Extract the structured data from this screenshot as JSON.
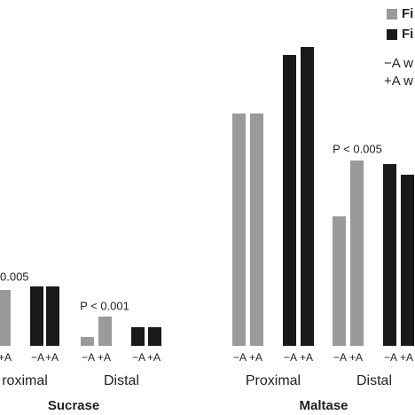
{
  "chart_data": {
    "type": "bar",
    "legend": [
      {
        "name": "Fi",
        "color": "#9a9a9a"
      },
      {
        "name": "Fi",
        "color": "#1a1a1a"
      }
    ],
    "legend_notes": [
      "−A w",
      "+A w"
    ],
    "groups": [
      {
        "label": "Sucrase",
        "regions": [
          {
            "label": "roximal",
            "annotation": "0.005",
            "pairs": [
              {
                "series": 0,
                "ticks": [
                  "+A"
                ],
                "values": [
                  63
                ]
              },
              {
                "series": 1,
                "ticks": [
                  "−A",
                  "+A"
                ],
                "values": [
                  67,
                  67
                ]
              }
            ]
          },
          {
            "label": "Distal",
            "annotation": "P < 0.001",
            "pairs": [
              {
                "series": 0,
                "ticks": [
                  "−A",
                  "+A"
                ],
                "values": [
                  10,
                  33
                ]
              },
              {
                "series": 1,
                "ticks": [
                  "−A",
                  "+A"
                ],
                "values": [
                  21,
                  21
                ]
              }
            ]
          }
        ]
      },
      {
        "label": "Maltase",
        "regions": [
          {
            "label": "Proximal",
            "pairs": [
              {
                "series": 0,
                "ticks": [
                  "−A",
                  "+A"
                ],
                "values": [
                  262,
                  262
                ]
              },
              {
                "series": 1,
                "ticks": [
                  "−A",
                  "+A"
                ],
                "values": [
                  328,
                  337
                ]
              }
            ]
          },
          {
            "label": "Distal",
            "annotation": "P < 0.005",
            "pairs": [
              {
                "series": 0,
                "ticks": [
                  "−A",
                  "+A"
                ],
                "values": [
                  146,
                  209
                ]
              },
              {
                "series": 1,
                "ticks": [
                  "−A",
                  "+A"
                ],
                "values": [
                  205,
                  193
                ]
              }
            ]
          }
        ]
      }
    ]
  }
}
